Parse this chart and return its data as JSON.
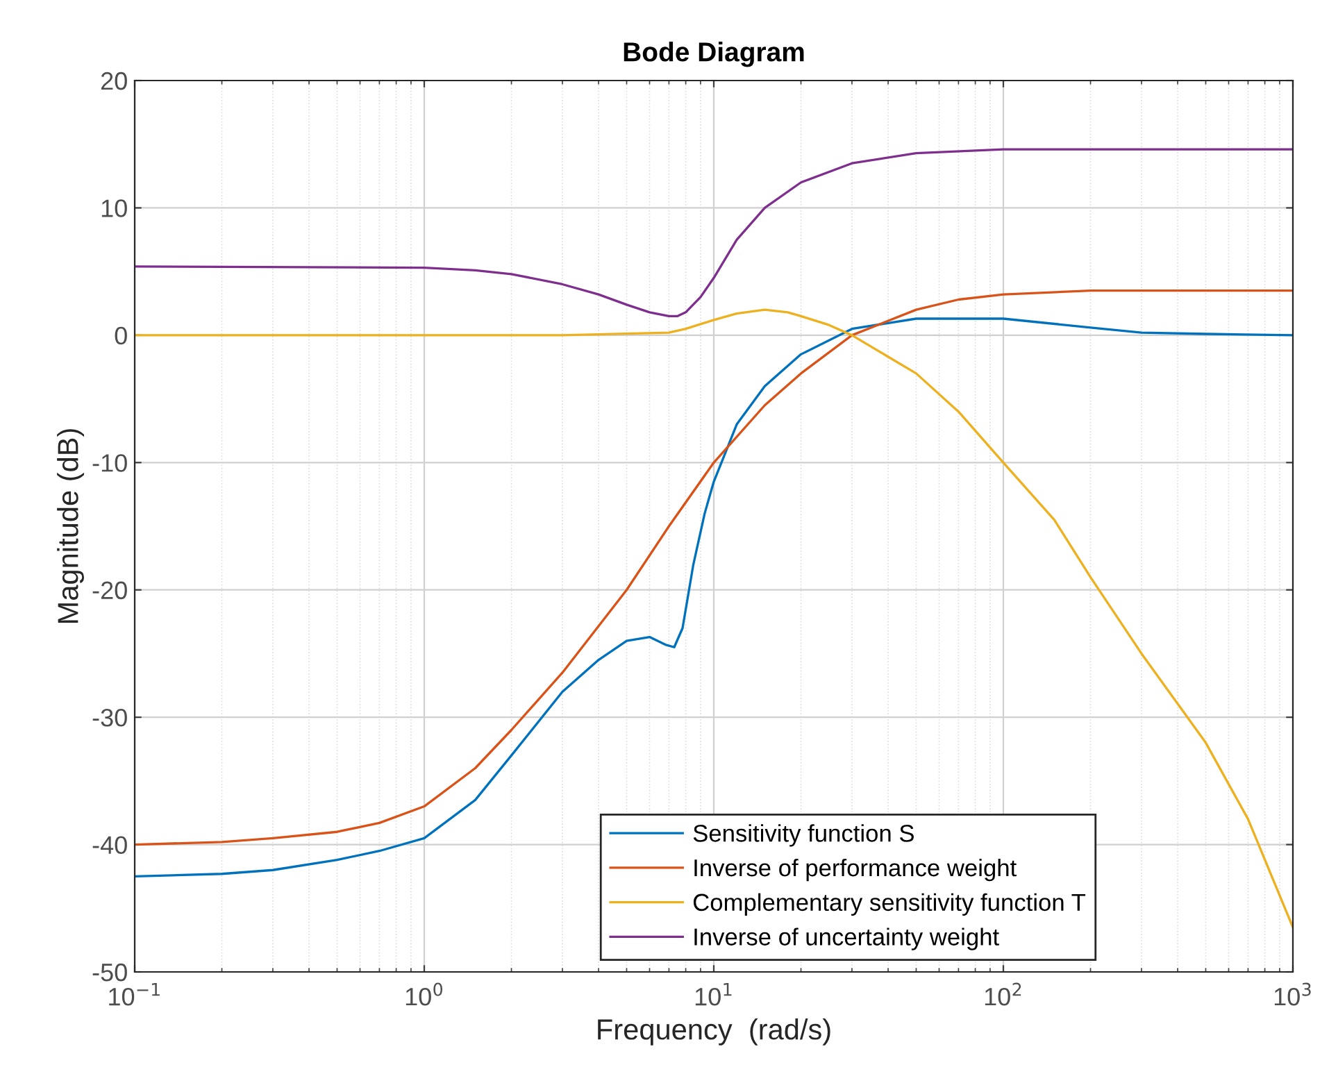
{
  "chart_data": {
    "type": "line",
    "title": "Bode Diagram",
    "xlabel": "Frequency  (rad/s)",
    "ylabel": "Magnitude (dB)",
    "log": "x",
    "grid": true,
    "legend": "bottom right",
    "line_style": "solid",
    "marker": "none",
    "xlim": [
      0.1,
      1000
    ],
    "ylim": [
      -50,
      20
    ],
    "xticks": [
      {
        "value": 0.1,
        "label": "10$^{−1}$"
      },
      {
        "value": 1,
        "label": "10$^{0}$"
      },
      {
        "value": 10,
        "label": "10$^{1}$"
      },
      {
        "value": 100,
        "label": "10$^{2}$"
      },
      {
        "value": 1000,
        "label": "10$^{3}$"
      }
    ],
    "yticks": [
      -50,
      -40,
      -30,
      -20,
      -10,
      0,
      10,
      20
    ],
    "series": [
      {
        "name": "Sensitivity function S",
        "color": "#0072bd",
        "x": [
          0.1,
          0.2,
          0.3,
          0.5,
          0.7,
          1,
          1.5,
          2,
          3,
          4,
          5,
          6,
          6.8,
          7.3,
          7.8,
          8.5,
          9.3,
          10,
          12,
          15,
          20,
          30,
          50,
          100,
          200,
          300,
          500,
          1000
        ],
        "values": [
          -42.5,
          -42.3,
          -42,
          -41.2,
          -40.5,
          -39.5,
          -36.5,
          -33,
          -28,
          -25.5,
          -24,
          -23.7,
          -24.3,
          -24.5,
          -23,
          -18,
          -14,
          -11.5,
          -7,
          -4,
          -1.5,
          0.5,
          1.3,
          1.3,
          0.6,
          0.2,
          0.1,
          0
        ]
      },
      {
        "name": "Inverse of performance weight",
        "color": "#d95319",
        "x": [
          0.1,
          0.2,
          0.3,
          0.5,
          0.7,
          1,
          1.5,
          2,
          3,
          5,
          7,
          10,
          15,
          20,
          30,
          50,
          70,
          100,
          200,
          1000
        ],
        "values": [
          -40,
          -39.8,
          -39.5,
          -39,
          -38.3,
          -37,
          -34,
          -31,
          -26.5,
          -20,
          -15,
          -10,
          -5.5,
          -3,
          0,
          2,
          2.8,
          3.2,
          3.5,
          3.5
        ]
      },
      {
        "name": "Complementary sensitivity function T",
        "color": "#edb120",
        "x": [
          0.1,
          3,
          7,
          8,
          10,
          12,
          15,
          18,
          20,
          25,
          30,
          50,
          70,
          100,
          150,
          200,
          300,
          500,
          700,
          1000
        ],
        "values": [
          0,
          0,
          0.2,
          0.5,
          1.2,
          1.7,
          2,
          1.8,
          1.5,
          0.8,
          0,
          -3,
          -6,
          -10,
          -14.5,
          -19,
          -25,
          -32,
          -38,
          -46.5
        ]
      },
      {
        "name": "Inverse of uncertainty weight",
        "color": "#7e2f8e",
        "x": [
          0.1,
          1,
          1.5,
          2,
          3,
          4,
          5,
          6,
          7,
          7.5,
          8,
          9,
          10,
          12,
          15,
          20,
          30,
          50,
          100,
          1000
        ],
        "values": [
          5.4,
          5.3,
          5.1,
          4.8,
          4,
          3.2,
          2.4,
          1.8,
          1.5,
          1.5,
          1.8,
          3,
          4.5,
          7.5,
          10,
          12,
          13.5,
          14.3,
          14.6,
          14.6
        ]
      }
    ]
  }
}
